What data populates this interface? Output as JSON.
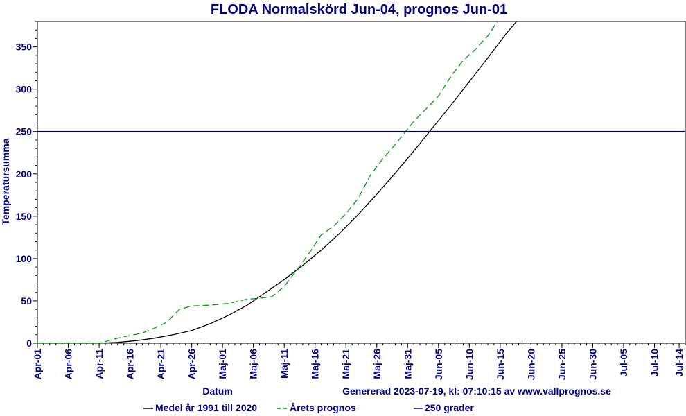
{
  "chart_data": {
    "type": "line",
    "title": "FLODA Normalskörd Jun-04, prognos Jun-01",
    "xlabel": "Datum",
    "ylabel": "Temperatursumma",
    "footnote": "Genererad 2023-07-19, kl: 07:10:15 av www.vallprognos.se",
    "x_range": [
      "Apr-01",
      "Jul-15"
    ],
    "ylim": [
      0,
      380
    ],
    "y_ticks": [
      0,
      50,
      100,
      150,
      200,
      250,
      300,
      350
    ],
    "x_ticks": [
      "Apr-01",
      "Apr-06",
      "Apr-11",
      "Apr-16",
      "Apr-21",
      "Apr-26",
      "Maj-01",
      "Maj-06",
      "Maj-11",
      "Maj-16",
      "Maj-21",
      "Maj-26",
      "Maj-31",
      "Jun-05",
      "Jun-10",
      "Jun-15",
      "Jun-20",
      "Jun-25",
      "Jun-30",
      "Jul-05",
      "Jul-10",
      "Jul-14"
    ],
    "grid": false,
    "legend_position": "bottom",
    "series": [
      {
        "name": "Medel år 1991 till 2020",
        "color": "#000000",
        "style": "solid",
        "points": [
          [
            "Apr-01",
            0
          ],
          [
            "Apr-11",
            0
          ],
          [
            "Apr-14",
            1
          ],
          [
            "Apr-17",
            3
          ],
          [
            "Apr-20",
            6
          ],
          [
            "Apr-23",
            10
          ],
          [
            "Apr-26",
            15
          ],
          [
            "Apr-29",
            23
          ],
          [
            "Maj-02",
            33
          ],
          [
            "Maj-05",
            45
          ],
          [
            "Maj-08",
            60
          ],
          [
            "Maj-11",
            75
          ],
          [
            "Maj-14",
            92
          ],
          [
            "Maj-17",
            110
          ],
          [
            "Maj-20",
            130
          ],
          [
            "Maj-23",
            152
          ],
          [
            "Maj-26",
            176
          ],
          [
            "Maj-29",
            201
          ],
          [
            "Jun-01",
            227
          ],
          [
            "Jun-04",
            254
          ],
          [
            "Jun-07",
            281
          ],
          [
            "Jun-10",
            309
          ],
          [
            "Jun-13",
            337
          ],
          [
            "Jun-16",
            366
          ],
          [
            "Jun-18",
            383
          ]
        ]
      },
      {
        "name": "Årets prognos",
        "color": "#00a000",
        "style": "dashed",
        "points": [
          [
            "Apr-01",
            0
          ],
          [
            "Apr-11",
            0
          ],
          [
            "Apr-12",
            2
          ],
          [
            "Apr-14",
            6
          ],
          [
            "Apr-16",
            9
          ],
          [
            "Apr-18",
            12
          ],
          [
            "Apr-20",
            18
          ],
          [
            "Apr-22",
            25
          ],
          [
            "Apr-24",
            40
          ],
          [
            "Apr-26",
            44
          ],
          [
            "Apr-29",
            45
          ],
          [
            "Maj-02",
            47
          ],
          [
            "Maj-05",
            52
          ],
          [
            "Maj-07",
            53
          ],
          [
            "Maj-09",
            55
          ],
          [
            "Maj-11",
            67
          ],
          [
            "Maj-13",
            86
          ],
          [
            "Maj-15",
            106
          ],
          [
            "Maj-17",
            128
          ],
          [
            "Maj-19",
            138
          ],
          [
            "Maj-21",
            153
          ],
          [
            "Maj-23",
            171
          ],
          [
            "Maj-25",
            199
          ],
          [
            "Maj-27",
            218
          ],
          [
            "Maj-29",
            235
          ],
          [
            "Jun-01",
            262
          ],
          [
            "Jun-03",
            277
          ],
          [
            "Jun-05",
            292
          ],
          [
            "Jun-07",
            315
          ],
          [
            "Jun-09",
            334
          ],
          [
            "Jun-11",
            347
          ],
          [
            "Jun-13",
            363
          ],
          [
            "Jun-15",
            385
          ]
        ]
      },
      {
        "name": "250 grader",
        "color": "#000090",
        "style": "solid",
        "points": [
          [
            "Apr-01",
            250
          ],
          [
            "Jul-15",
            250
          ]
        ]
      }
    ]
  }
}
